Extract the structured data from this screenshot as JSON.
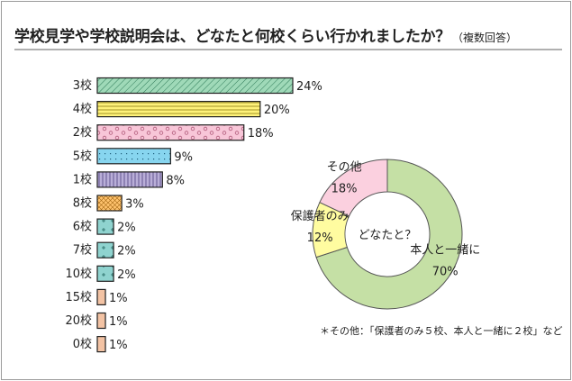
{
  "header": {
    "title": "学校見学や学校説明会は、どなたと何校くらい行かれましたか？",
    "subtitle": "（複数回答）"
  },
  "footnote": "＊その他：「保護者のみ５校、本人と一緒に２校」など",
  "chart_data": [
    {
      "type": "bar",
      "orientation": "horizontal",
      "categories": [
        "3校",
        "4校",
        "2校",
        "5校",
        "1校",
        "8校",
        "6校",
        "7校",
        "10校",
        "15校",
        "20校",
        "0校"
      ],
      "values": [
        24,
        20,
        18,
        9,
        8,
        3,
        2,
        2,
        2,
        1,
        1,
        1
      ],
      "value_labels": [
        "24%",
        "20%",
        "18%",
        "9%",
        "8%",
        "3%",
        "2%",
        "2%",
        "2%",
        "1%",
        "1%",
        "1%"
      ],
      "colors": [
        "#9fd9b8",
        "#fff27a",
        "#f8c6d8",
        "#87d5ef",
        "#b9aed8",
        "#ffc36e",
        "#8fd3cf",
        "#8fd3cf",
        "#8fd3cf",
        "#f3c3a4",
        "#f3c3a4",
        "#f3c3a4"
      ],
      "xlim": [
        0,
        24
      ]
    },
    {
      "type": "pie",
      "style": "donut",
      "center_label": "どなたと？",
      "categories": [
        "本人と一緒に",
        "保護者のみ",
        "その他"
      ],
      "values": [
        70,
        12,
        18
      ],
      "value_labels": [
        "70%",
        "12%",
        "18%"
      ],
      "colors": [
        "#c5e0a5",
        "#fffca0",
        "#fbd0df"
      ]
    }
  ]
}
